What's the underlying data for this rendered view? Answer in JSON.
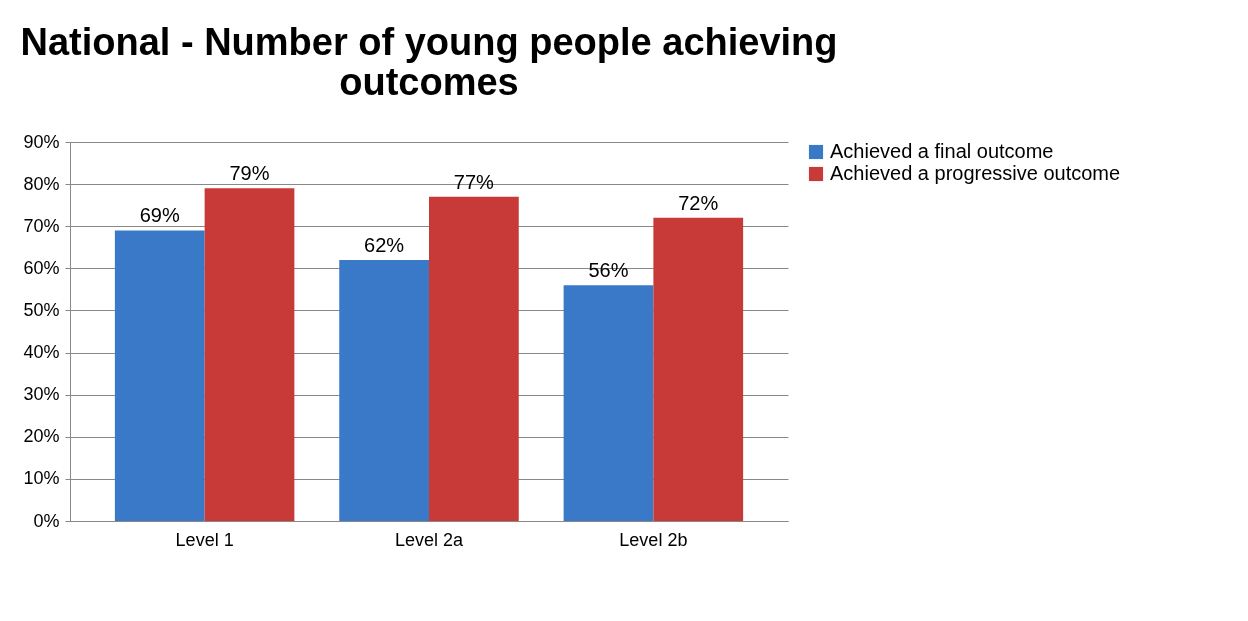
{
  "chart_data": {
    "type": "bar",
    "title": "National - Number of young people achieving outcomes",
    "categories": [
      "Level 1",
      "Level 2a",
      "Level 2b"
    ],
    "series": [
      {
        "name": "Achieved a final outcome",
        "color": "#3a78c8",
        "values": [
          69,
          62,
          56
        ],
        "value_labels": [
          "69%",
          "62%",
          "56%"
        ]
      },
      {
        "name": "Achieved a progressive outcome",
        "color": "#c83a38",
        "values": [
          79,
          77,
          72
        ],
        "value_labels": [
          "79%",
          "77%",
          "72%"
        ]
      }
    ],
    "ylim": [
      0,
      90
    ],
    "yticks": [
      {
        "value": 0,
        "label": "0%"
      },
      {
        "value": 10,
        "label": "10%"
      },
      {
        "value": 20,
        "label": "20%"
      },
      {
        "value": 30,
        "label": "30%"
      },
      {
        "value": 40,
        "label": "40%"
      },
      {
        "value": 50,
        "label": "50%"
      },
      {
        "value": 60,
        "label": "60%"
      },
      {
        "value": 70,
        "label": "70%"
      },
      {
        "value": 80,
        "label": "80%"
      },
      {
        "value": 90,
        "label": "90%"
      }
    ],
    "grid": "y",
    "legend": "right"
  }
}
